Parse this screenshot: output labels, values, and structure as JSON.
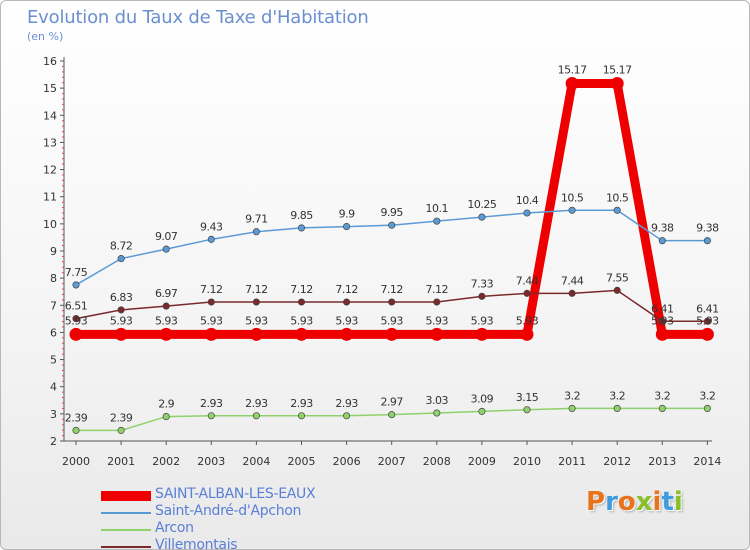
{
  "header": {
    "title": "Evolution du Taux de Taxe d'Habitation",
    "subtitle": "(en %)"
  },
  "logo": {
    "text": "Proxiti",
    "colors": [
      "#e8731c",
      "#3f9be0",
      "#e8731c",
      "#8bbf2a",
      "#e8731c",
      "#3f9be0",
      "#8bbf2a"
    ]
  },
  "chart_data": {
    "type": "line",
    "x": [
      "2000",
      "2001",
      "2002",
      "2003",
      "2004",
      "2005",
      "2006",
      "2007",
      "2008",
      "2009",
      "2010",
      "2011",
      "2012",
      "2013",
      "2014"
    ],
    "ylim": [
      2,
      16
    ],
    "yticks": [
      2,
      3,
      4,
      5,
      6,
      7,
      8,
      9,
      10,
      11,
      12,
      13,
      14,
      15,
      16
    ],
    "grid": false,
    "legend_position": "bottom-left",
    "series": [
      {
        "name": "SAINT-ALBAN-LES-EAUX",
        "color": "#ee0000",
        "bold": true,
        "values": [
          5.93,
          5.93,
          5.93,
          5.93,
          5.93,
          5.93,
          5.93,
          5.93,
          5.93,
          5.93,
          5.93,
          15.17,
          15.17,
          5.93,
          5.93
        ],
        "labels": [
          "5.93",
          "5.93",
          "5.93",
          "5.93",
          "5.93",
          "5.93",
          "5.93",
          "5.93",
          "5.93",
          "5.93",
          "5.93",
          "15.17",
          "15.17",
          "5.93",
          "5.93"
        ]
      },
      {
        "name": "Saint-André-d'Apchon",
        "color": "#5b9bd5",
        "values": [
          7.75,
          8.72,
          9.07,
          9.43,
          9.71,
          9.85,
          9.9,
          9.95,
          10.1,
          10.25,
          10.4,
          10.5,
          10.5,
          9.38,
          9.38
        ],
        "labels": [
          "7.75",
          "8.72",
          "9.07",
          "9.43",
          "9.71",
          "9.85",
          "9.9",
          "9.95",
          "10.1",
          "10.25",
          "10.4",
          "10.5",
          "10.5",
          "9.38",
          "9.38"
        ]
      },
      {
        "name": "Arcon",
        "color": "#8fd16a",
        "values": [
          2.39,
          2.39,
          2.9,
          2.93,
          2.93,
          2.93,
          2.93,
          2.97,
          3.03,
          3.09,
          3.15,
          3.2,
          3.2,
          3.2,
          3.2
        ],
        "labels": [
          "2.39",
          "2.39",
          "2.9",
          "2.93",
          "2.93",
          "2.93",
          "2.93",
          "2.97",
          "3.03",
          "3.09",
          "3.15",
          "3.2",
          "3.2",
          "3.2",
          "3.2"
        ]
      },
      {
        "name": "Villemontais",
        "color": "#7a2a2a",
        "values": [
          6.51,
          6.83,
          6.97,
          7.12,
          7.12,
          7.12,
          7.12,
          7.12,
          7.12,
          7.33,
          7.44,
          7.44,
          7.55,
          6.41,
          6.41
        ],
        "labels": [
          "6.51",
          "6.83",
          "6.97",
          "7.12",
          "7.12",
          "7.12",
          "7.12",
          "7.12",
          "7.12",
          "7.33",
          "7.44",
          "7.44",
          "7.55",
          "6.41",
          "6.41"
        ]
      }
    ]
  }
}
